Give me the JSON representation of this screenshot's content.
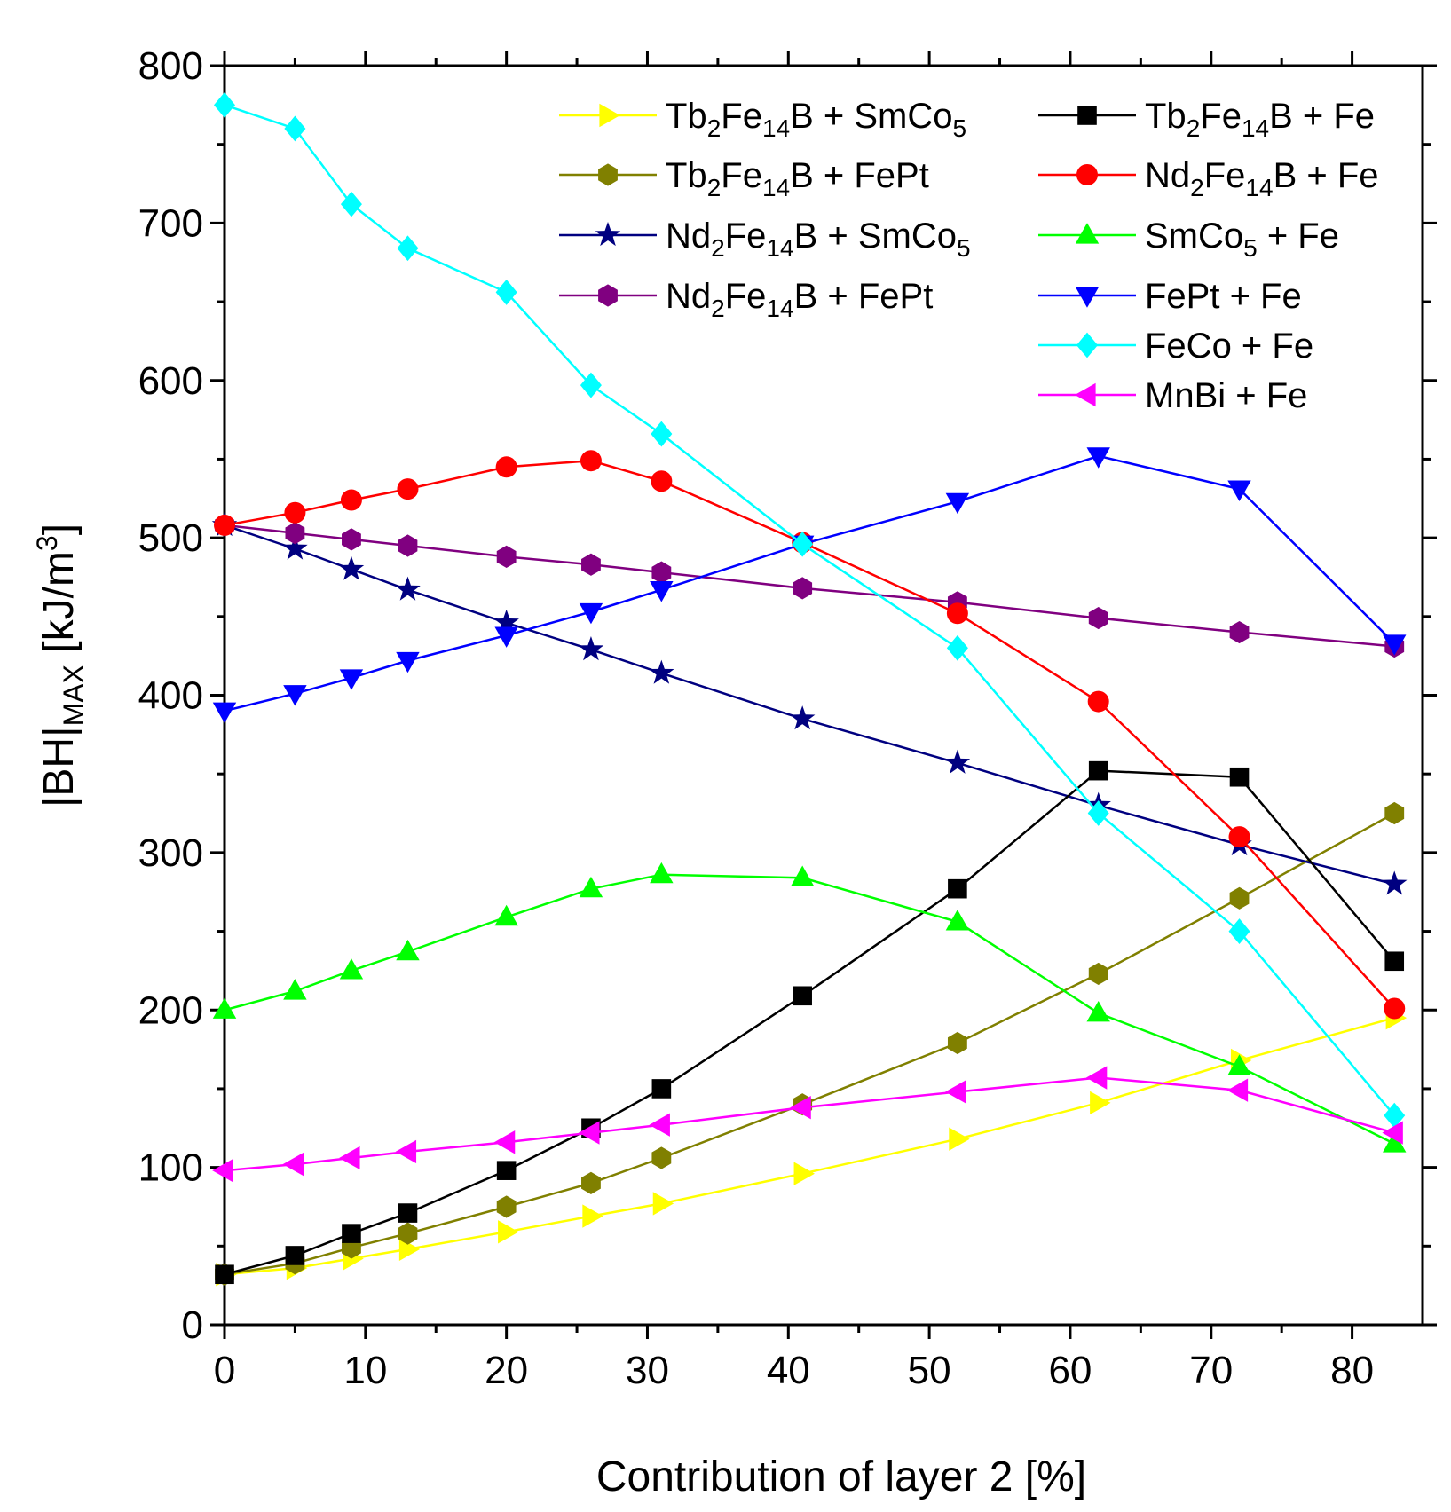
{
  "chart_data": {
    "type": "line",
    "xlabel": "Contribution of layer 2 [%]",
    "ylabel": "|BH|MAX [kJ/m3]",
    "ylabel_parts": [
      "|BH|",
      "MAX",
      " [kJ/m",
      "3",
      "]"
    ],
    "xlim": [
      0,
      85
    ],
    "ylim": [
      0,
      800
    ],
    "x_ticks": [
      0,
      10,
      20,
      30,
      40,
      50,
      60,
      70,
      80
    ],
    "y_ticks": [
      0,
      100,
      200,
      300,
      400,
      500,
      600,
      700,
      800
    ],
    "legend_position": "top-right",
    "x": [
      0,
      5,
      9,
      13,
      20,
      26,
      31,
      41,
      52,
      62,
      72,
      83
    ],
    "series": [
      {
        "name": "Tb2Fe14B + SmCo5",
        "label_parts": [
          "Tb",
          "2",
          "Fe",
          "14",
          "B + SmCo",
          "5"
        ],
        "color": "#ffff00",
        "marker": "triangle-right",
        "values": [
          32,
          36,
          42,
          48,
          59,
          69,
          77,
          96,
          118,
          141,
          168,
          195
        ]
      },
      {
        "name": "Tb2Fe14B + FePt",
        "label_parts": [
          "Tb",
          "2",
          "Fe",
          "14",
          "B + FePt",
          ""
        ],
        "color": "#808000",
        "marker": "hexagon",
        "values": [
          32,
          39,
          49,
          58,
          75,
          90,
          106,
          140,
          179,
          223,
          271,
          325
        ]
      },
      {
        "name": "Nd2Fe14B + SmCo5",
        "label_parts": [
          "Nd",
          "2",
          "Fe",
          "14",
          "B + SmCo",
          "5"
        ],
        "color": "#000080",
        "marker": "star",
        "values": [
          508,
          493,
          480,
          467,
          446,
          429,
          414,
          385,
          357,
          330,
          305,
          280
        ]
      },
      {
        "name": "Nd2Fe14B + FePt",
        "label_parts": [
          "Nd",
          "2",
          "Fe",
          "14",
          "B + FePt",
          ""
        ],
        "color": "#800080",
        "marker": "hexagon",
        "values": [
          508,
          503,
          499,
          495,
          488,
          483,
          478,
          468,
          459,
          449,
          440,
          431
        ]
      },
      {
        "name": "Tb2Fe14B + Fe",
        "label_parts": [
          "Tb",
          "2",
          "Fe",
          "14",
          "B + Fe",
          ""
        ],
        "color": "#000000",
        "marker": "square",
        "values": [
          32,
          44,
          58,
          71,
          98,
          125,
          150,
          209,
          277,
          352,
          348,
          231
        ]
      },
      {
        "name": "Nd2Fe14B + Fe",
        "label_parts": [
          "Nd",
          "2",
          "Fe",
          "14",
          "B + Fe",
          ""
        ],
        "color": "#ff0000",
        "marker": "circle",
        "values": [
          508,
          516,
          524,
          531,
          545,
          549,
          536,
          497,
          452,
          396,
          310,
          201
        ]
      },
      {
        "name": "SmCo5 + Fe",
        "label_parts": [
          "SmCo",
          "5",
          " + Fe",
          "",
          "",
          ""
        ],
        "color": "#00ff00",
        "marker": "triangle-up",
        "values": [
          200,
          212,
          225,
          237,
          259,
          277,
          286,
          284,
          256,
          198,
          164,
          115
        ]
      },
      {
        "name": "FePt + Fe",
        "label_parts": [
          "FePt + Fe",
          "",
          "",
          "",
          "",
          ""
        ],
        "color": "#0000ff",
        "marker": "triangle-down",
        "values": [
          390,
          401,
          411,
          422,
          438,
          453,
          467,
          496,
          523,
          552,
          531,
          433
        ]
      },
      {
        "name": "FeCo + Fe",
        "label_parts": [
          "FeCo + Fe",
          "",
          "",
          "",
          "",
          ""
        ],
        "color": "#00ffff",
        "marker": "diamond",
        "values": [
          775,
          760,
          712,
          684,
          656,
          597,
          566,
          496,
          430,
          325,
          250,
          133
        ]
      },
      {
        "name": "MnBi + Fe",
        "label_parts": [
          "MnBi + Fe",
          "",
          "",
          "",
          "",
          ""
        ],
        "color": "#ff00ff",
        "marker": "triangle-left",
        "values": [
          98,
          102,
          106,
          110,
          116,
          122,
          127,
          138,
          148,
          157,
          149,
          122
        ]
      }
    ],
    "legend_layout": [
      0,
      1,
      2,
      3,
      4,
      5,
      6,
      7,
      8,
      9
    ]
  }
}
